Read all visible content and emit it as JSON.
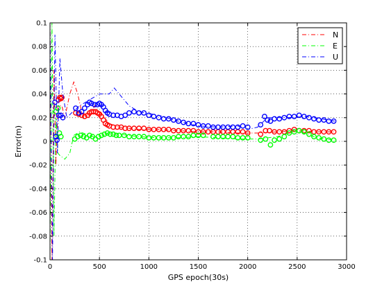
{
  "chart_data": {
    "type": "line",
    "title": "",
    "xlabel": "GPS epoch(30s)",
    "ylabel": "Error(m)",
    "xlim": [
      0,
      3000
    ],
    "ylim": [
      -0.1,
      0.1
    ],
    "x_ticks": [
      0,
      500,
      1000,
      1500,
      2000,
      2500,
      3000
    ],
    "y_ticks": [
      -0.1,
      -0.08,
      -0.06,
      -0.04,
      -0.02,
      0,
      0.02,
      0.04,
      0.06,
      0.08,
      0.1
    ],
    "x_tick_labels": [
      "0",
      "500",
      "1000",
      "1500",
      "2000",
      "2500",
      "3000"
    ],
    "y_tick_labels": [
      "-0.1",
      "-0.08",
      "-0.06",
      "-0.04",
      "-0.02",
      "0",
      "0.02",
      "0.04",
      "0.06",
      "0.08",
      "0.1"
    ],
    "grid": true,
    "legend_position": "top-right",
    "series": [
      {
        "name": "N",
        "color": "#ff0000",
        "dash": "dash-dot",
        "line": [
          [
            0,
            0.1
          ],
          [
            20,
            -0.1
          ],
          [
            40,
            0.06
          ],
          [
            60,
            -0.02
          ],
          [
            80,
            0.03
          ],
          [
            120,
            0.03
          ],
          [
            150,
            0.02
          ],
          [
            200,
            0.04
          ],
          [
            240,
            0.05
          ],
          [
            280,
            0.04
          ],
          [
            320,
            0.025
          ],
          [
            400,
            0.02
          ],
          [
            450,
            0.03
          ],
          [
            500,
            0.025
          ],
          [
            600,
            0.015
          ],
          [
            700,
            0.012
          ],
          [
            900,
            0.01
          ],
          [
            1100,
            0.01
          ],
          [
            1300,
            0.009
          ],
          [
            1500,
            0.008
          ],
          [
            1700,
            0.008
          ],
          [
            1900,
            0.007
          ],
          [
            2100,
            0.007
          ],
          [
            2300,
            0.008
          ],
          [
            2500,
            0.009
          ],
          [
            2700,
            0.008
          ],
          [
            2880,
            0.008
          ]
        ],
        "markers": [
          [
            85,
            0.035
          ],
          [
            100,
            0.037
          ],
          [
            110,
            0.036
          ],
          [
            120,
            0.037
          ],
          [
            260,
            0.024
          ],
          [
            290,
            0.023
          ],
          [
            320,
            0.022
          ],
          [
            350,
            0.021
          ],
          [
            380,
            0.022
          ],
          [
            400,
            0.024
          ],
          [
            420,
            0.025
          ],
          [
            440,
            0.025
          ],
          [
            460,
            0.025
          ],
          [
            480,
            0.024
          ],
          [
            500,
            0.023
          ],
          [
            520,
            0.021
          ],
          [
            540,
            0.018
          ],
          [
            560,
            0.015
          ],
          [
            580,
            0.014
          ],
          [
            600,
            0.013
          ],
          [
            640,
            0.012
          ],
          [
            680,
            0.012
          ],
          [
            720,
            0.012
          ],
          [
            760,
            0.011
          ],
          [
            800,
            0.011
          ],
          [
            850,
            0.011
          ],
          [
            900,
            0.011
          ],
          [
            950,
            0.011
          ],
          [
            1000,
            0.01
          ],
          [
            1050,
            0.01
          ],
          [
            1100,
            0.01
          ],
          [
            1150,
            0.01
          ],
          [
            1200,
            0.01
          ],
          [
            1250,
            0.009
          ],
          [
            1300,
            0.009
          ],
          [
            1350,
            0.009
          ],
          [
            1400,
            0.009
          ],
          [
            1450,
            0.009
          ],
          [
            1500,
            0.008
          ],
          [
            1550,
            0.008
          ],
          [
            1600,
            0.008
          ],
          [
            1650,
            0.008
          ],
          [
            1700,
            0.008
          ],
          [
            1750,
            0.008
          ],
          [
            1800,
            0.008
          ],
          [
            1850,
            0.008
          ],
          [
            1900,
            0.008
          ],
          [
            1950,
            0.008
          ],
          [
            2000,
            0.007
          ],
          [
            2130,
            0.006
          ],
          [
            2180,
            0.009
          ],
          [
            2220,
            0.009
          ],
          [
            2270,
            0.008
          ],
          [
            2320,
            0.008
          ],
          [
            2370,
            0.008
          ],
          [
            2420,
            0.009
          ],
          [
            2470,
            0.01
          ],
          [
            2520,
            0.009
          ],
          [
            2570,
            0.009
          ],
          [
            2620,
            0.009
          ],
          [
            2670,
            0.008
          ],
          [
            2720,
            0.008
          ],
          [
            2770,
            0.008
          ],
          [
            2820,
            0.008
          ],
          [
            2870,
            0.008
          ]
        ]
      },
      {
        "name": "E",
        "color": "#00ff00",
        "dash": "dash-dot",
        "line": [
          [
            0,
            -0.1
          ],
          [
            20,
            0.1
          ],
          [
            40,
            -0.08
          ],
          [
            60,
            0.02
          ],
          [
            80,
            -0.01
          ],
          [
            100,
            -0.012
          ],
          [
            150,
            -0.015
          ],
          [
            200,
            -0.01
          ],
          [
            240,
            0.005
          ],
          [
            300,
            0.008
          ],
          [
            400,
            0.005
          ],
          [
            500,
            0.002
          ],
          [
            600,
            0.008
          ],
          [
            700,
            0.006
          ],
          [
            900,
            0.004
          ],
          [
            1100,
            0.003
          ],
          [
            1300,
            0.003
          ],
          [
            1500,
            0.004
          ],
          [
            1700,
            0.003
          ],
          [
            1900,
            0.002
          ],
          [
            2100,
            0.002
          ],
          [
            2300,
            0.004
          ],
          [
            2500,
            0.009
          ],
          [
            2700,
            0.003
          ],
          [
            2880,
            0.001
          ]
        ],
        "markers": [
          [
            60,
            0.025
          ],
          [
            80,
            0.028
          ],
          [
            95,
            0.007
          ],
          [
            110,
            0.004
          ],
          [
            250,
            0.002
          ],
          [
            280,
            0.004
          ],
          [
            310,
            0.005
          ],
          [
            340,
            0.004
          ],
          [
            370,
            0.003
          ],
          [
            400,
            0.005
          ],
          [
            430,
            0.004
          ],
          [
            460,
            0.002
          ],
          [
            490,
            0.004
          ],
          [
            520,
            0.005
          ],
          [
            550,
            0.006
          ],
          [
            580,
            0.007
          ],
          [
            610,
            0.006
          ],
          [
            640,
            0.006
          ],
          [
            670,
            0.005
          ],
          [
            700,
            0.005
          ],
          [
            750,
            0.005
          ],
          [
            800,
            0.004
          ],
          [
            850,
            0.004
          ],
          [
            900,
            0.004
          ],
          [
            950,
            0.004
          ],
          [
            1000,
            0.003
          ],
          [
            1050,
            0.003
          ],
          [
            1100,
            0.003
          ],
          [
            1150,
            0.003
          ],
          [
            1200,
            0.003
          ],
          [
            1250,
            0.003
          ],
          [
            1300,
            0.004
          ],
          [
            1350,
            0.004
          ],
          [
            1400,
            0.004
          ],
          [
            1450,
            0.005
          ],
          [
            1500,
            0.005
          ],
          [
            1550,
            0.005
          ],
          [
            1650,
            0.004
          ],
          [
            1700,
            0.004
          ],
          [
            1750,
            0.004
          ],
          [
            1800,
            0.004
          ],
          [
            1850,
            0.004
          ],
          [
            1900,
            0.003
          ],
          [
            1950,
            0.003
          ],
          [
            2000,
            0.003
          ],
          [
            2130,
            0.001
          ],
          [
            2180,
            0.002
          ],
          [
            2230,
            -0.003
          ],
          [
            2270,
            0.001
          ],
          [
            2320,
            0.002
          ],
          [
            2370,
            0.004
          ],
          [
            2420,
            0.007
          ],
          [
            2470,
            0.008
          ],
          [
            2520,
            0.009
          ],
          [
            2570,
            0.008
          ],
          [
            2620,
            0.006
          ],
          [
            2670,
            0.004
          ],
          [
            2720,
            0.003
          ],
          [
            2770,
            0.002
          ],
          [
            2820,
            0.001
          ],
          [
            2870,
            0.001
          ]
        ]
      },
      {
        "name": "U",
        "color": "#0000ff",
        "dash": "dash-dot",
        "line": [
          [
            0,
            0.1
          ],
          [
            25,
            -0.1
          ],
          [
            50,
            0.09
          ],
          [
            75,
            -0.01
          ],
          [
            100,
            0.07
          ],
          [
            130,
            0.04
          ],
          [
            170,
            0.02
          ],
          [
            230,
            0.025
          ],
          [
            300,
            0.03
          ],
          [
            400,
            0.035
          ],
          [
            500,
            0.04
          ],
          [
            600,
            0.04
          ],
          [
            650,
            0.045
          ],
          [
            700,
            0.04
          ],
          [
            800,
            0.03
          ],
          [
            900,
            0.025
          ],
          [
            1100,
            0.022
          ],
          [
            1300,
            0.017
          ],
          [
            1500,
            0.013
          ],
          [
            1700,
            0.012
          ],
          [
            1900,
            0.013
          ],
          [
            2000,
            0.01
          ],
          [
            2100,
            0.012
          ],
          [
            2200,
            0.02
          ],
          [
            2400,
            0.02
          ],
          [
            2600,
            0.021
          ],
          [
            2880,
            0.017
          ]
        ],
        "markers": [
          [
            50,
            0.033
          ],
          [
            60,
            0.004
          ],
          [
            70,
            0.001
          ],
          [
            90,
            0.022
          ],
          [
            110,
            0.022
          ],
          [
            130,
            0.02
          ],
          [
            260,
            0.028
          ],
          [
            290,
            0.024
          ],
          [
            320,
            0.025
          ],
          [
            350,
            0.028
          ],
          [
            380,
            0.031
          ],
          [
            400,
            0.033
          ],
          [
            420,
            0.032
          ],
          [
            450,
            0.031
          ],
          [
            480,
            0.031
          ],
          [
            500,
            0.032
          ],
          [
            520,
            0.031
          ],
          [
            540,
            0.029
          ],
          [
            560,
            0.026
          ],
          [
            580,
            0.024
          ],
          [
            600,
            0.023
          ],
          [
            640,
            0.022
          ],
          [
            680,
            0.022
          ],
          [
            720,
            0.021
          ],
          [
            760,
            0.022
          ],
          [
            800,
            0.024
          ],
          [
            850,
            0.025
          ],
          [
            900,
            0.024
          ],
          [
            950,
            0.024
          ],
          [
            1000,
            0.022
          ],
          [
            1050,
            0.021
          ],
          [
            1100,
            0.02
          ],
          [
            1150,
            0.019
          ],
          [
            1200,
            0.019
          ],
          [
            1250,
            0.018
          ],
          [
            1300,
            0.017
          ],
          [
            1350,
            0.016
          ],
          [
            1400,
            0.015
          ],
          [
            1450,
            0.015
          ],
          [
            1500,
            0.014
          ],
          [
            1550,
            0.013
          ],
          [
            1600,
            0.013
          ],
          [
            1650,
            0.012
          ],
          [
            1700,
            0.012
          ],
          [
            1750,
            0.012
          ],
          [
            1800,
            0.012
          ],
          [
            1850,
            0.012
          ],
          [
            1900,
            0.012
          ],
          [
            1950,
            0.013
          ],
          [
            2000,
            0.012
          ],
          [
            2130,
            0.014
          ],
          [
            2170,
            0.021
          ],
          [
            2200,
            0.018
          ],
          [
            2230,
            0.017
          ],
          [
            2270,
            0.019
          ],
          [
            2320,
            0.019
          ],
          [
            2370,
            0.02
          ],
          [
            2420,
            0.021
          ],
          [
            2470,
            0.021
          ],
          [
            2520,
            0.022
          ],
          [
            2570,
            0.021
          ],
          [
            2620,
            0.02
          ],
          [
            2670,
            0.019
          ],
          [
            2720,
            0.018
          ],
          [
            2770,
            0.018
          ],
          [
            2820,
            0.017
          ],
          [
            2870,
            0.017
          ]
        ]
      }
    ]
  }
}
